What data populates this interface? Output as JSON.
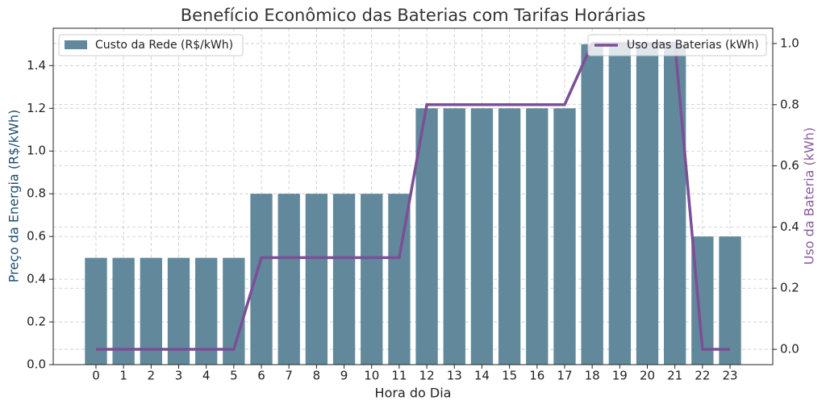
{
  "chart_data": {
    "type": "bar",
    "title": "Benefício Econômico das Baterias com Tarifas Horárias",
    "x_label": "Hora do Dia",
    "y_label": "Preço da Energia (R$/kWh)",
    "y2_label": "Uso da Bateria (kWh)",
    "categories": [
      "0",
      "1",
      "2",
      "3",
      "4",
      "5",
      "6",
      "7",
      "8",
      "9",
      "10",
      "11",
      "12",
      "13",
      "14",
      "15",
      "16",
      "17",
      "18",
      "19",
      "20",
      "21",
      "22",
      "23"
    ],
    "series": [
      {
        "name": "Custo da Rede (R$/kWh)",
        "type": "bar",
        "color": "#62899b",
        "values": [
          0.5,
          0.5,
          0.5,
          0.5,
          0.5,
          0.5,
          0.8,
          0.8,
          0.8,
          0.8,
          0.8,
          0.8,
          1.2,
          1.2,
          1.2,
          1.2,
          1.2,
          1.2,
          1.5,
          1.5,
          1.5,
          1.5,
          0.6,
          0.6
        ]
      },
      {
        "name": "Uso das Baterias (kWh)",
        "type": "line",
        "axis": "y2",
        "color": "#7b4f96",
        "values": [
          0,
          0,
          0,
          0,
          0,
          0,
          0.3,
          0.3,
          0.3,
          0.3,
          0.3,
          0.3,
          0.8,
          0.8,
          0.8,
          0.8,
          0.8,
          0.8,
          1,
          1,
          1,
          1,
          0,
          0
        ]
      }
    ],
    "ylim": [
      0,
      1.575
    ],
    "yticks": [
      {
        "value": 0,
        "label": "0.0"
      },
      0.2,
      0.4,
      0.6,
      0.8,
      {
        "value": 1,
        "label": "1.0"
      },
      1.2,
      1.4
    ],
    "y2lim": [
      -0.05,
      1.05
    ],
    "y2ticks": [
      {
        "value": 0,
        "label": "0.0"
      },
      0.2,
      0.4,
      0.6,
      0.8,
      {
        "value": 1,
        "label": "1.0"
      }
    ],
    "grid": true,
    "y_label_color": "#1f4e6b",
    "y2_label_color": "#8a5ca0"
  }
}
